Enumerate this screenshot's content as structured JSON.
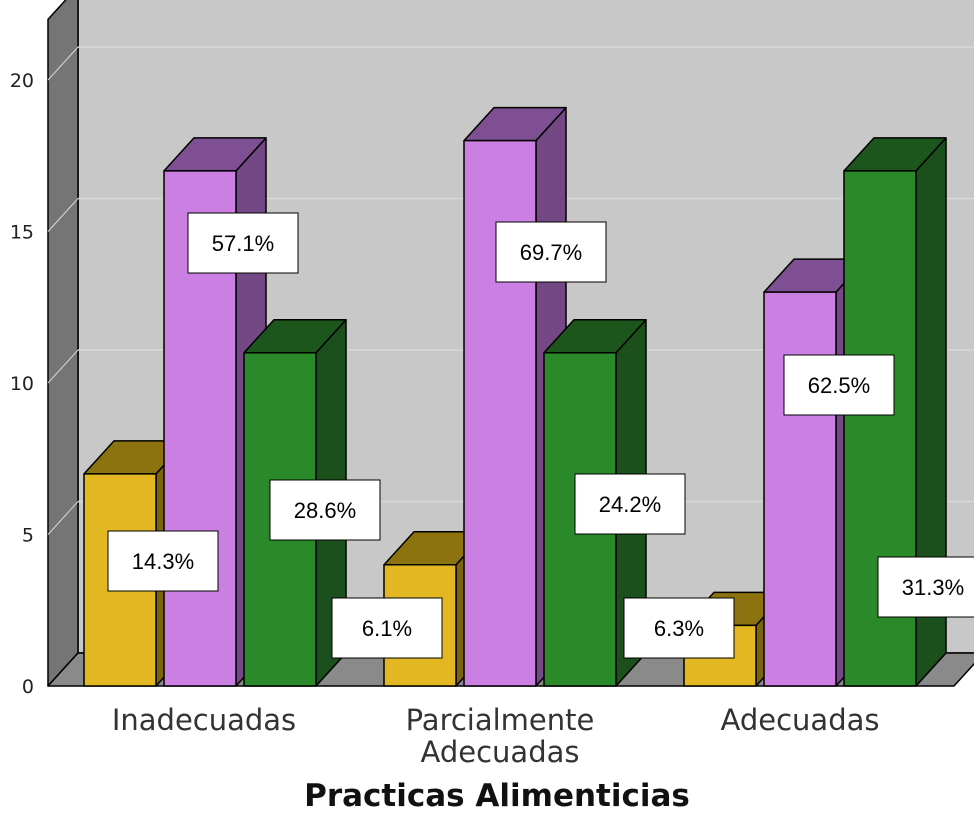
{
  "chart_data": {
    "type": "bar",
    "categories": [
      "Inadecuadas",
      "Parcialmente Adecuadas",
      "Adecuadas"
    ],
    "category_lines": [
      [
        "Inadecuadas"
      ],
      [
        "Parcialmente",
        "Adecuadas"
      ],
      [
        "Adecuadas"
      ]
    ],
    "series": [
      {
        "color": "#E2B721",
        "top_color": "#8C730F",
        "side_color": "#7A640C",
        "values": [
          7,
          4,
          2
        ],
        "labels": [
          "14.3%",
          "6.1%",
          "6.3%"
        ]
      },
      {
        "color": "#CC7FE3",
        "top_color": "#7E4F92",
        "side_color": "#744785",
        "values": [
          17,
          18,
          13
        ],
        "labels": [
          "57.1%",
          "69.7%",
          "62.5%"
        ]
      },
      {
        "color": "#2A8A2A",
        "top_color": "#1C561C",
        "side_color": "#1B4F1B",
        "values": [
          11,
          11,
          17
        ],
        "labels": [
          "28.6%",
          "24.2%",
          "31.3%"
        ]
      }
    ],
    "yticks": [
      0,
      5,
      10,
      15,
      20
    ],
    "ylim": [
      0,
      22
    ],
    "xlabel": "Practicas Alimenticias",
    "ylabel": "",
    "grid": true,
    "style": "3d",
    "colors": {
      "wall": "#C8C8C8",
      "wall_side": "#757575",
      "floor": "#8A8A8A",
      "grid": "#D8D8D8",
      "outline": "#000000"
    }
  }
}
